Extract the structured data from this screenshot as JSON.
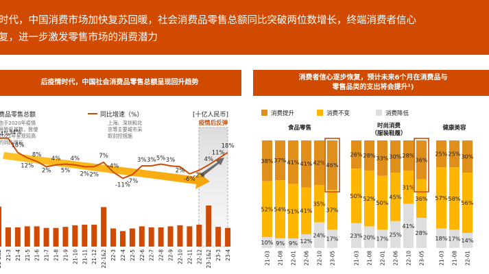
{
  "banner": {
    "line1": "时代，中国消费市场加快复苏回暖，社会消费品零售总额同比突破两位数增长，终端消费者信心",
    "line2": "复，进一步激发零售市场的消费潜力"
  },
  "left_panel": {
    "title": "后疫情时代，中国社会消费品零售总额呈现回升趋势",
    "legend_total": "费品零售总额",
    "legend_yoy": "同比增速（%）",
    "unit": "[十亿人民币]",
    "note1": [
      "由于2020年疫情",
      "导致低基数，致使",
      "2021年呈现较高",
      "的同比增长"
    ],
    "note2": [
      "上海、深圳和北",
      "京等主要城市采",
      "取封控措施"
    ],
    "rebound": "疫情后反弹"
  },
  "right_panel": {
    "title_lines": [
      "消费者信心逐步恢复，预计未来6个月在消费品与",
      "零售品类的支出将会提升¹)"
    ],
    "legend": [
      "消费提升",
      "消费不变",
      "消费降低"
    ],
    "colors": {
      "up": "#e0901a",
      "same": "#ffb600",
      "down": "#dedede"
    },
    "groups": [
      {
        "name": [
          "食品零售"
        ]
      },
      {
        "name": [
          "时尚消费",
          "（服装鞋履）"
        ]
      },
      {
        "name": [
          "健康美容"
        ]
      }
    ]
  },
  "chart_data": [
    {
      "type": "bar",
      "title": "后疫情时代，中国社会消费品零售总额呈现回升趋势",
      "categories": [
        "21-1&2",
        "21-3",
        "21-4",
        "21-5",
        "21-6",
        "21-7",
        "21-8",
        "21-9",
        "21-10",
        "21-11",
        "21-12",
        "22-1&2",
        "22-3",
        "22-4",
        "22-5",
        "22-6",
        "22-7",
        "22-8",
        "22-9",
        "22-10",
        "22-11",
        "22-12",
        "23-1&2",
        "23-3",
        "23-4"
      ],
      "series": [
        {
          "name": "费品零售总额",
          "type": "bar",
          "values": [
            7.5,
            3.6,
            3.6,
            3.8,
            3.8,
            3.5,
            3.5,
            3.7,
            4.0,
            4.1,
            4.1,
            7.4,
            3.4,
            2.9,
            3.4,
            3.8,
            3.6,
            3.6,
            3.8,
            4.0,
            3.8,
            4.1,
            7.7,
            3.7,
            3.5
          ]
        },
        {
          "name": "同比增速（%）",
          "type": "line",
          "values": [
            34,
            34,
            18,
            12,
            8,
            2,
            4,
            5,
            4,
            2,
            2,
            7,
            -4,
            -11,
            -7,
            3,
            3,
            5,
            3,
            2,
            -6,
            -2,
            4,
            11,
            18
          ]
        }
      ],
      "unit": "[十亿人民币]",
      "annotations": [
        "疫情后反弹"
      ]
    },
    {
      "type": "bar",
      "title": "消费者信心逐步恢复，预计未来6个月在消费品与零售品类的支出将会提升¹)",
      "stacked": true,
      "groups": [
        {
          "name": "食品零售",
          "categories": [
            "21-03",
            "21-08",
            "22-01",
            "22-06",
            "22-10",
            "23-05"
          ],
          "series": [
            {
              "name": "消费提升",
              "values": [
                38,
                37,
                41,
                41,
                42,
                46
              ]
            },
            {
              "name": "消费不变",
              "values": [
                52,
                54,
                51,
                41,
                35,
                37
              ]
            },
            {
              "name": "消费降低",
              "values": [
                10,
                9,
                9,
                12,
                24,
                17
              ]
            }
          ]
        },
        {
          "name": "时尚消费（服装鞋履）",
          "categories": [
            "21-03",
            "21-08",
            "22-01",
            "22-06",
            "22-10",
            "23-05"
          ],
          "series": [
            {
              "name": "消费提升",
              "values": [
                26,
                28,
                33,
                30,
                28,
                36
              ]
            },
            {
              "name": "消费不变",
              "values": [
                50,
                52,
                50,
                45,
                31,
                36
              ]
            },
            {
              "name": "消费降低",
              "values": [
                23,
                20,
                17,
                25,
                41,
                28
              ]
            }
          ]
        },
        {
          "name": "健康美容",
          "categories": [
            "21-03",
            "21-08",
            "22-01"
          ],
          "series": [
            {
              "name": "消费提升",
              "values": [
                25,
                25,
                30
              ]
            },
            {
              "name": "消费不变",
              "values": [
                57,
                58,
                56
              ]
            },
            {
              "name": "消费降低",
              "values": [
                18,
                17,
                14
              ]
            }
          ]
        }
      ]
    }
  ]
}
